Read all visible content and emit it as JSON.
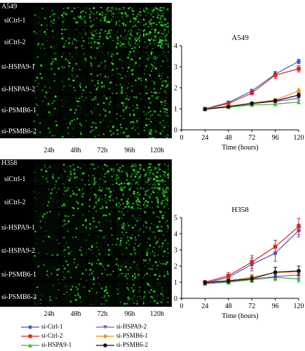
{
  "panels": [
    {
      "cell_line": "A549",
      "rows": [
        "siCtrl-1",
        "siCtrl-2",
        "si-HSPA9-1",
        "si-HSPA9-2",
        "si-PSMB6-1",
        "si-PSMB6-2"
      ],
      "columns": [
        "24h",
        "48h",
        "72h",
        "96h",
        "120h"
      ]
    },
    {
      "cell_line": "H358",
      "rows": [
        "siCtrl-1",
        "siCtrl-2",
        "si-HSPA9-1",
        "si-HSPA9-2",
        "si-PSMB6-1",
        "si-PSMB6-2"
      ],
      "columns": [
        "24h",
        "48h",
        "72h",
        "96h",
        "120h"
      ]
    }
  ],
  "colors": {
    "si-Ctrl-1": "#3a5fc6",
    "si-Ctrl-2": "#e02020",
    "si-HSPA9-1": "#3bb33b",
    "si-HSPA9-2": "#8a4fc8",
    "si-PSMB6-1": "#f08a1c",
    "si-PSMB6-2": "#111111",
    "fluorescence": "#2ee02e"
  },
  "chart_data": [
    {
      "type": "line",
      "title": "A549",
      "xlabel": "Time (hours)",
      "ylabel": "",
      "x": [
        24,
        48,
        72,
        96,
        120
      ],
      "xlim": [
        0,
        120
      ],
      "ylim": [
        0,
        4
      ],
      "xticks": [
        "0",
        "24",
        "48",
        "72",
        "96",
        "120"
      ],
      "yticks": [
        "0",
        "1",
        "2",
        "3",
        "4"
      ],
      "series": [
        {
          "name": "si-Ctrl-1",
          "marker": "circle",
          "values": [
            1.0,
            1.3,
            1.85,
            2.65,
            3.25
          ],
          "errors": [
            0.03,
            0.07,
            0.08,
            0.12,
            0.1
          ]
        },
        {
          "name": "si-Ctrl-2",
          "marker": "square",
          "values": [
            1.0,
            1.25,
            1.75,
            2.6,
            2.9
          ],
          "errors": [
            0.03,
            0.06,
            0.08,
            0.15,
            0.15
          ]
        },
        {
          "name": "si-HSPA9-1",
          "marker": "triangle-up",
          "values": [
            0.98,
            1.08,
            1.18,
            1.22,
            1.32
          ],
          "errors": [
            0.03,
            0.05,
            0.05,
            0.06,
            0.08
          ]
        },
        {
          "name": "si-HSPA9-2",
          "marker": "triangle-down",
          "values": [
            1.0,
            1.12,
            1.25,
            1.35,
            1.5
          ],
          "errors": [
            0.03,
            0.05,
            0.05,
            0.06,
            0.08
          ]
        },
        {
          "name": "si-PSMB6-1",
          "marker": "diamond",
          "values": [
            1.0,
            1.12,
            1.28,
            1.42,
            1.85
          ],
          "errors": [
            0.03,
            0.05,
            0.05,
            0.07,
            0.1
          ]
        },
        {
          "name": "si-PSMB6-2",
          "marker": "hexagon",
          "values": [
            0.98,
            1.1,
            1.25,
            1.38,
            1.65
          ],
          "errors": [
            0.03,
            0.05,
            0.06,
            0.07,
            0.1
          ]
        }
      ]
    },
    {
      "type": "line",
      "title": "H358",
      "xlabel": "Time (hours)",
      "ylabel": "",
      "x": [
        24,
        48,
        72,
        96,
        120
      ],
      "xlim": [
        0,
        120
      ],
      "ylim": [
        0,
        5
      ],
      "xticks": [
        "0",
        "24",
        "48",
        "72",
        "96",
        "120"
      ],
      "yticks": [
        "0",
        "1",
        "2",
        "3",
        "4",
        "5"
      ],
      "series": [
        {
          "name": "si-Ctrl-1",
          "marker": "circle",
          "values": [
            0.95,
            1.3,
            2.1,
            2.8,
            4.2
          ],
          "errors": [
            0.1,
            0.2,
            0.4,
            0.5,
            0.4
          ]
        },
        {
          "name": "si-Ctrl-2",
          "marker": "square",
          "values": [
            1.0,
            1.4,
            2.25,
            3.2,
            4.45
          ],
          "errors": [
            0.1,
            0.2,
            0.4,
            0.4,
            0.5
          ]
        },
        {
          "name": "si-HSPA9-1",
          "marker": "triangle-up",
          "values": [
            0.9,
            1.0,
            1.15,
            1.3,
            1.2
          ],
          "errors": [
            0.1,
            0.12,
            0.15,
            0.2,
            0.2
          ]
        },
        {
          "name": "si-HSPA9-2",
          "marker": "triangle-down",
          "values": [
            0.95,
            1.05,
            1.2,
            1.35,
            1.45
          ],
          "errors": [
            0.1,
            0.12,
            0.15,
            0.2,
            0.2
          ]
        },
        {
          "name": "si-PSMB6-1",
          "marker": "diamond",
          "values": [
            1.0,
            1.1,
            1.3,
            1.6,
            1.65
          ],
          "errors": [
            0.1,
            0.15,
            0.2,
            0.3,
            0.35
          ]
        },
        {
          "name": "si-PSMB6-2",
          "marker": "hexagon",
          "values": [
            0.98,
            1.08,
            1.22,
            1.62,
            1.7
          ],
          "errors": [
            0.1,
            0.12,
            0.18,
            0.3,
            0.3
          ]
        }
      ]
    }
  ],
  "legend": [
    "si-Ctrl-1",
    "si-Ctrl-2",
    "si-HSPA9-1",
    "si-HSPA9-2",
    "si-PSMB6-1",
    "si-PSMB6-2"
  ]
}
